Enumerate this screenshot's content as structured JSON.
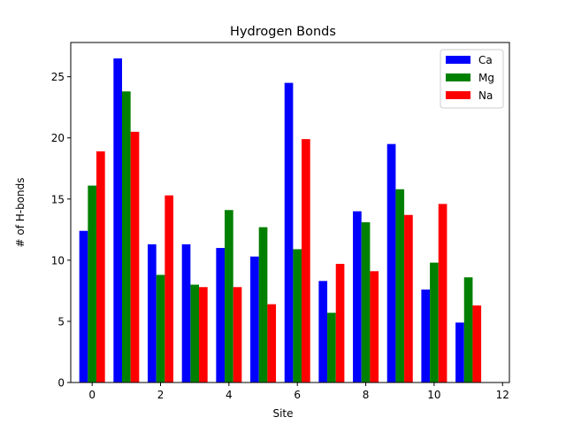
{
  "chart_data": {
    "type": "bar",
    "title": "Hydrogen Bonds",
    "xlabel": "Site",
    "ylabel": "# of H-bonds",
    "x": [
      0,
      1,
      2,
      3,
      4,
      5,
      6,
      7,
      8,
      9,
      10,
      11
    ],
    "xlim": [
      -0.625,
      12.2
    ],
    "ylim": [
      0,
      27.8
    ],
    "xticks": [
      0,
      2,
      4,
      6,
      8,
      10,
      12
    ],
    "yticks": [
      0,
      5,
      10,
      15,
      20,
      25
    ],
    "grid": false,
    "legend_position": "top-right",
    "series": [
      {
        "name": "Ca",
        "color": "#0000ff",
        "values": [
          12.4,
          26.5,
          11.3,
          11.3,
          11.0,
          10.3,
          24.5,
          8.3,
          14.0,
          19.5,
          7.6,
          4.9
        ]
      },
      {
        "name": "Mg",
        "color": "#008000",
        "values": [
          16.1,
          23.8,
          8.8,
          8.0,
          14.1,
          12.7,
          10.9,
          5.7,
          13.1,
          15.8,
          9.8,
          8.6
        ]
      },
      {
        "name": "Na",
        "color": "#ff0000",
        "values": [
          18.9,
          20.5,
          15.3,
          7.8,
          7.8,
          6.4,
          19.9,
          9.7,
          9.1,
          13.7,
          14.6,
          6.3
        ]
      }
    ]
  }
}
